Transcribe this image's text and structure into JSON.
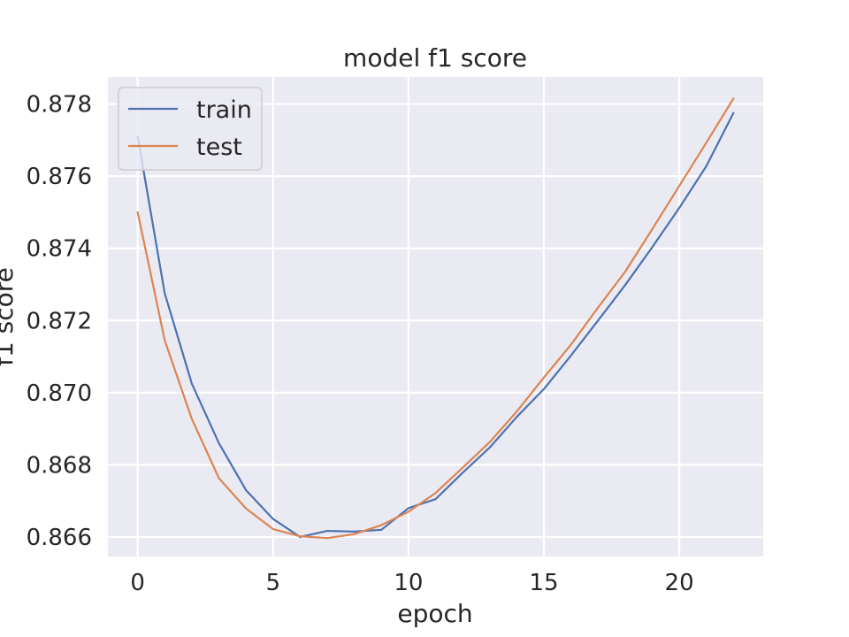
{
  "chart_data": {
    "type": "line",
    "title": "model f1 score",
    "xlabel": "epoch",
    "ylabel": "f1 score",
    "xlim": [
      -1.1,
      23.1
    ],
    "ylim": [
      0.86546,
      0.87875
    ],
    "xticks": [
      0,
      5,
      10,
      15,
      20
    ],
    "yticks": [
      0.866,
      0.868,
      0.87,
      0.872,
      0.874,
      0.876,
      0.878
    ],
    "ytick_labels": [
      "0.866",
      "0.868",
      "0.870",
      "0.872",
      "0.874",
      "0.876",
      "0.878"
    ],
    "grid": true,
    "legend_position": "upper-left",
    "x": [
      0,
      1,
      2,
      3,
      4,
      5,
      6,
      7,
      8,
      9,
      10,
      11,
      12,
      13,
      14,
      15,
      16,
      17,
      18,
      19,
      20,
      21,
      22
    ],
    "series": [
      {
        "name": "train",
        "color": "#4c72b0",
        "values": [
          0.8771,
          0.87275,
          0.87025,
          0.8686,
          0.8673,
          0.8665,
          0.866,
          0.86617,
          0.86615,
          0.8662,
          0.8668,
          0.86705,
          0.86778,
          0.86848,
          0.86933,
          0.8701,
          0.87103,
          0.872,
          0.87298,
          0.87403,
          0.87512,
          0.87628,
          0.87775
        ]
      },
      {
        "name": "test",
        "color": "#dd8452",
        "values": [
          0.875,
          0.87145,
          0.86927,
          0.86763,
          0.86679,
          0.86622,
          0.86602,
          0.86597,
          0.86608,
          0.86633,
          0.8667,
          0.86722,
          0.86792,
          0.86863,
          0.86948,
          0.87042,
          0.87133,
          0.87236,
          0.87335,
          0.87453,
          0.87573,
          0.87693,
          0.87815
        ]
      }
    ]
  }
}
